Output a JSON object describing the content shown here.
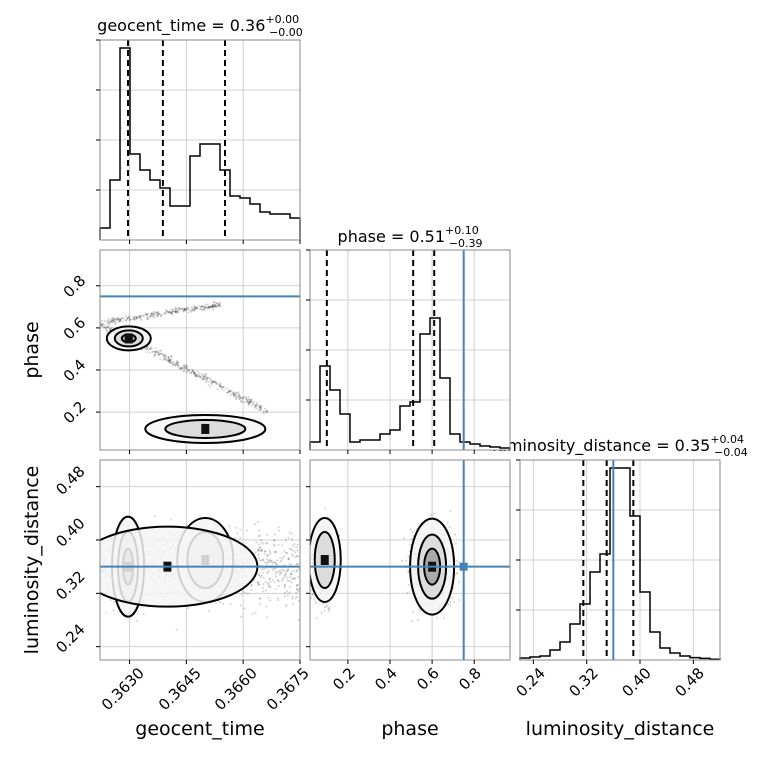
{
  "chart_data": {
    "type": "corner",
    "parameters": [
      {
        "name": "geocent_time",
        "median": "0.36",
        "plus": "+0.00",
        "minus": "−0.00",
        "quantiles": [
          0.36296,
          0.36388,
          0.36552
        ]
      },
      {
        "name": "phase",
        "median": "0.51",
        "plus": "+0.10",
        "minus": "−0.39",
        "quantiles": [
          0.1,
          0.51,
          0.61
        ],
        "truth": 0.75
      },
      {
        "name": "luminosity_distance",
        "median": "0.35",
        "plus": "+0.04",
        "minus": "−0.04",
        "quantiles": [
          0.315,
          0.35,
          0.39
        ],
        "truth": 0.36
      }
    ],
    "titles": {
      "geocent_time": {
        "prefix": "geocent_time = 0.36",
        "sup": "+0.00",
        "sub": "−0.00"
      },
      "phase": {
        "prefix": "phase = 0.51",
        "sup": "+0.10",
        "sub": "−0.39"
      },
      "luminosity_distance": {
        "prefix": "luminosity_distance = 0.35",
        "sup": "+0.04",
        "sub": "−0.04"
      }
    },
    "axis_labels": {
      "x": [
        "geocent_time",
        "phase",
        "luminosity_distance"
      ],
      "y": [
        "phase",
        "luminosity_distance"
      ]
    },
    "ticks": {
      "geocent_time": [
        "0.3630",
        "0.3645",
        "0.3660",
        "0.3675"
      ],
      "phase": [
        "0.2",
        "0.4",
        "0.6",
        "0.8"
      ],
      "luminosity_distance": [
        "0.24",
        "0.32",
        "0.40",
        "0.48"
      ]
    },
    "ranges": {
      "geocent_time": [
        0.36222,
        0.3675
      ],
      "phase": [
        0.02,
        0.97
      ],
      "luminosity_distance": [
        0.22,
        0.52
      ]
    },
    "histograms": {
      "geocent_time": [
        0.06,
        0.3,
        0.96,
        0.43,
        0.35,
        0.3,
        0.26,
        0.17,
        0.17,
        0.42,
        0.48,
        0.48,
        0.35,
        0.22,
        0.21,
        0.18,
        0.14,
        0.13,
        0.13,
        0.11
      ],
      "phase": [
        0.04,
        0.42,
        0.3,
        0.18,
        0.04,
        0.05,
        0.05,
        0.08,
        0.1,
        0.22,
        0.24,
        0.58,
        0.66,
        0.36,
        0.08,
        0.04,
        0.03,
        0.02,
        0.015,
        0.01
      ],
      "luminosity_distance": [
        0.01,
        0.015,
        0.02,
        0.05,
        0.09,
        0.18,
        0.28,
        0.44,
        0.53,
        0.96,
        0.96,
        0.72,
        0.34,
        0.14,
        0.06,
        0.035,
        0.02,
        0.012,
        0.008,
        0.004
      ]
    },
    "truths": {
      "phase": 0.75,
      "luminosity_distance": 0.36
    },
    "truth_color": "#4682b4",
    "grid": true
  }
}
